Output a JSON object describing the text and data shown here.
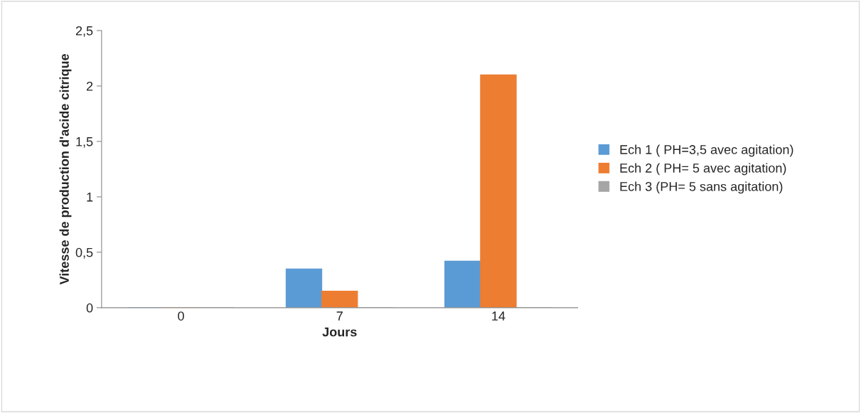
{
  "chart_data": {
    "type": "bar",
    "xlabel": "Jours",
    "ylabel": "Vitesse de production d'acide citrique",
    "categories": [
      "0",
      "7",
      "14"
    ],
    "series": [
      {
        "name": "Ech 1 ( PH=3,5 avec agitation)",
        "color": "#5b9bd5",
        "values": [
          0,
          0.35,
          0.42
        ]
      },
      {
        "name": "Ech 2 ( PH= 5 avec agitation)",
        "color": "#ed7d31",
        "values": [
          0,
          0.15,
          2.1
        ]
      },
      {
        "name": "Ech 3 (PH= 5 sans agitation)",
        "color": "#a5a5a5",
        "values": [
          0,
          0,
          0
        ]
      }
    ],
    "ylim": [
      0,
      2.5
    ],
    "yticks": [
      0,
      {
        "value": 0.5,
        "label": "0,5"
      },
      1,
      {
        "value": 1.5,
        "label": "1,5"
      },
      2,
      {
        "value": 2.5,
        "label": "2,5"
      }
    ],
    "grid": false,
    "legend": "right"
  }
}
